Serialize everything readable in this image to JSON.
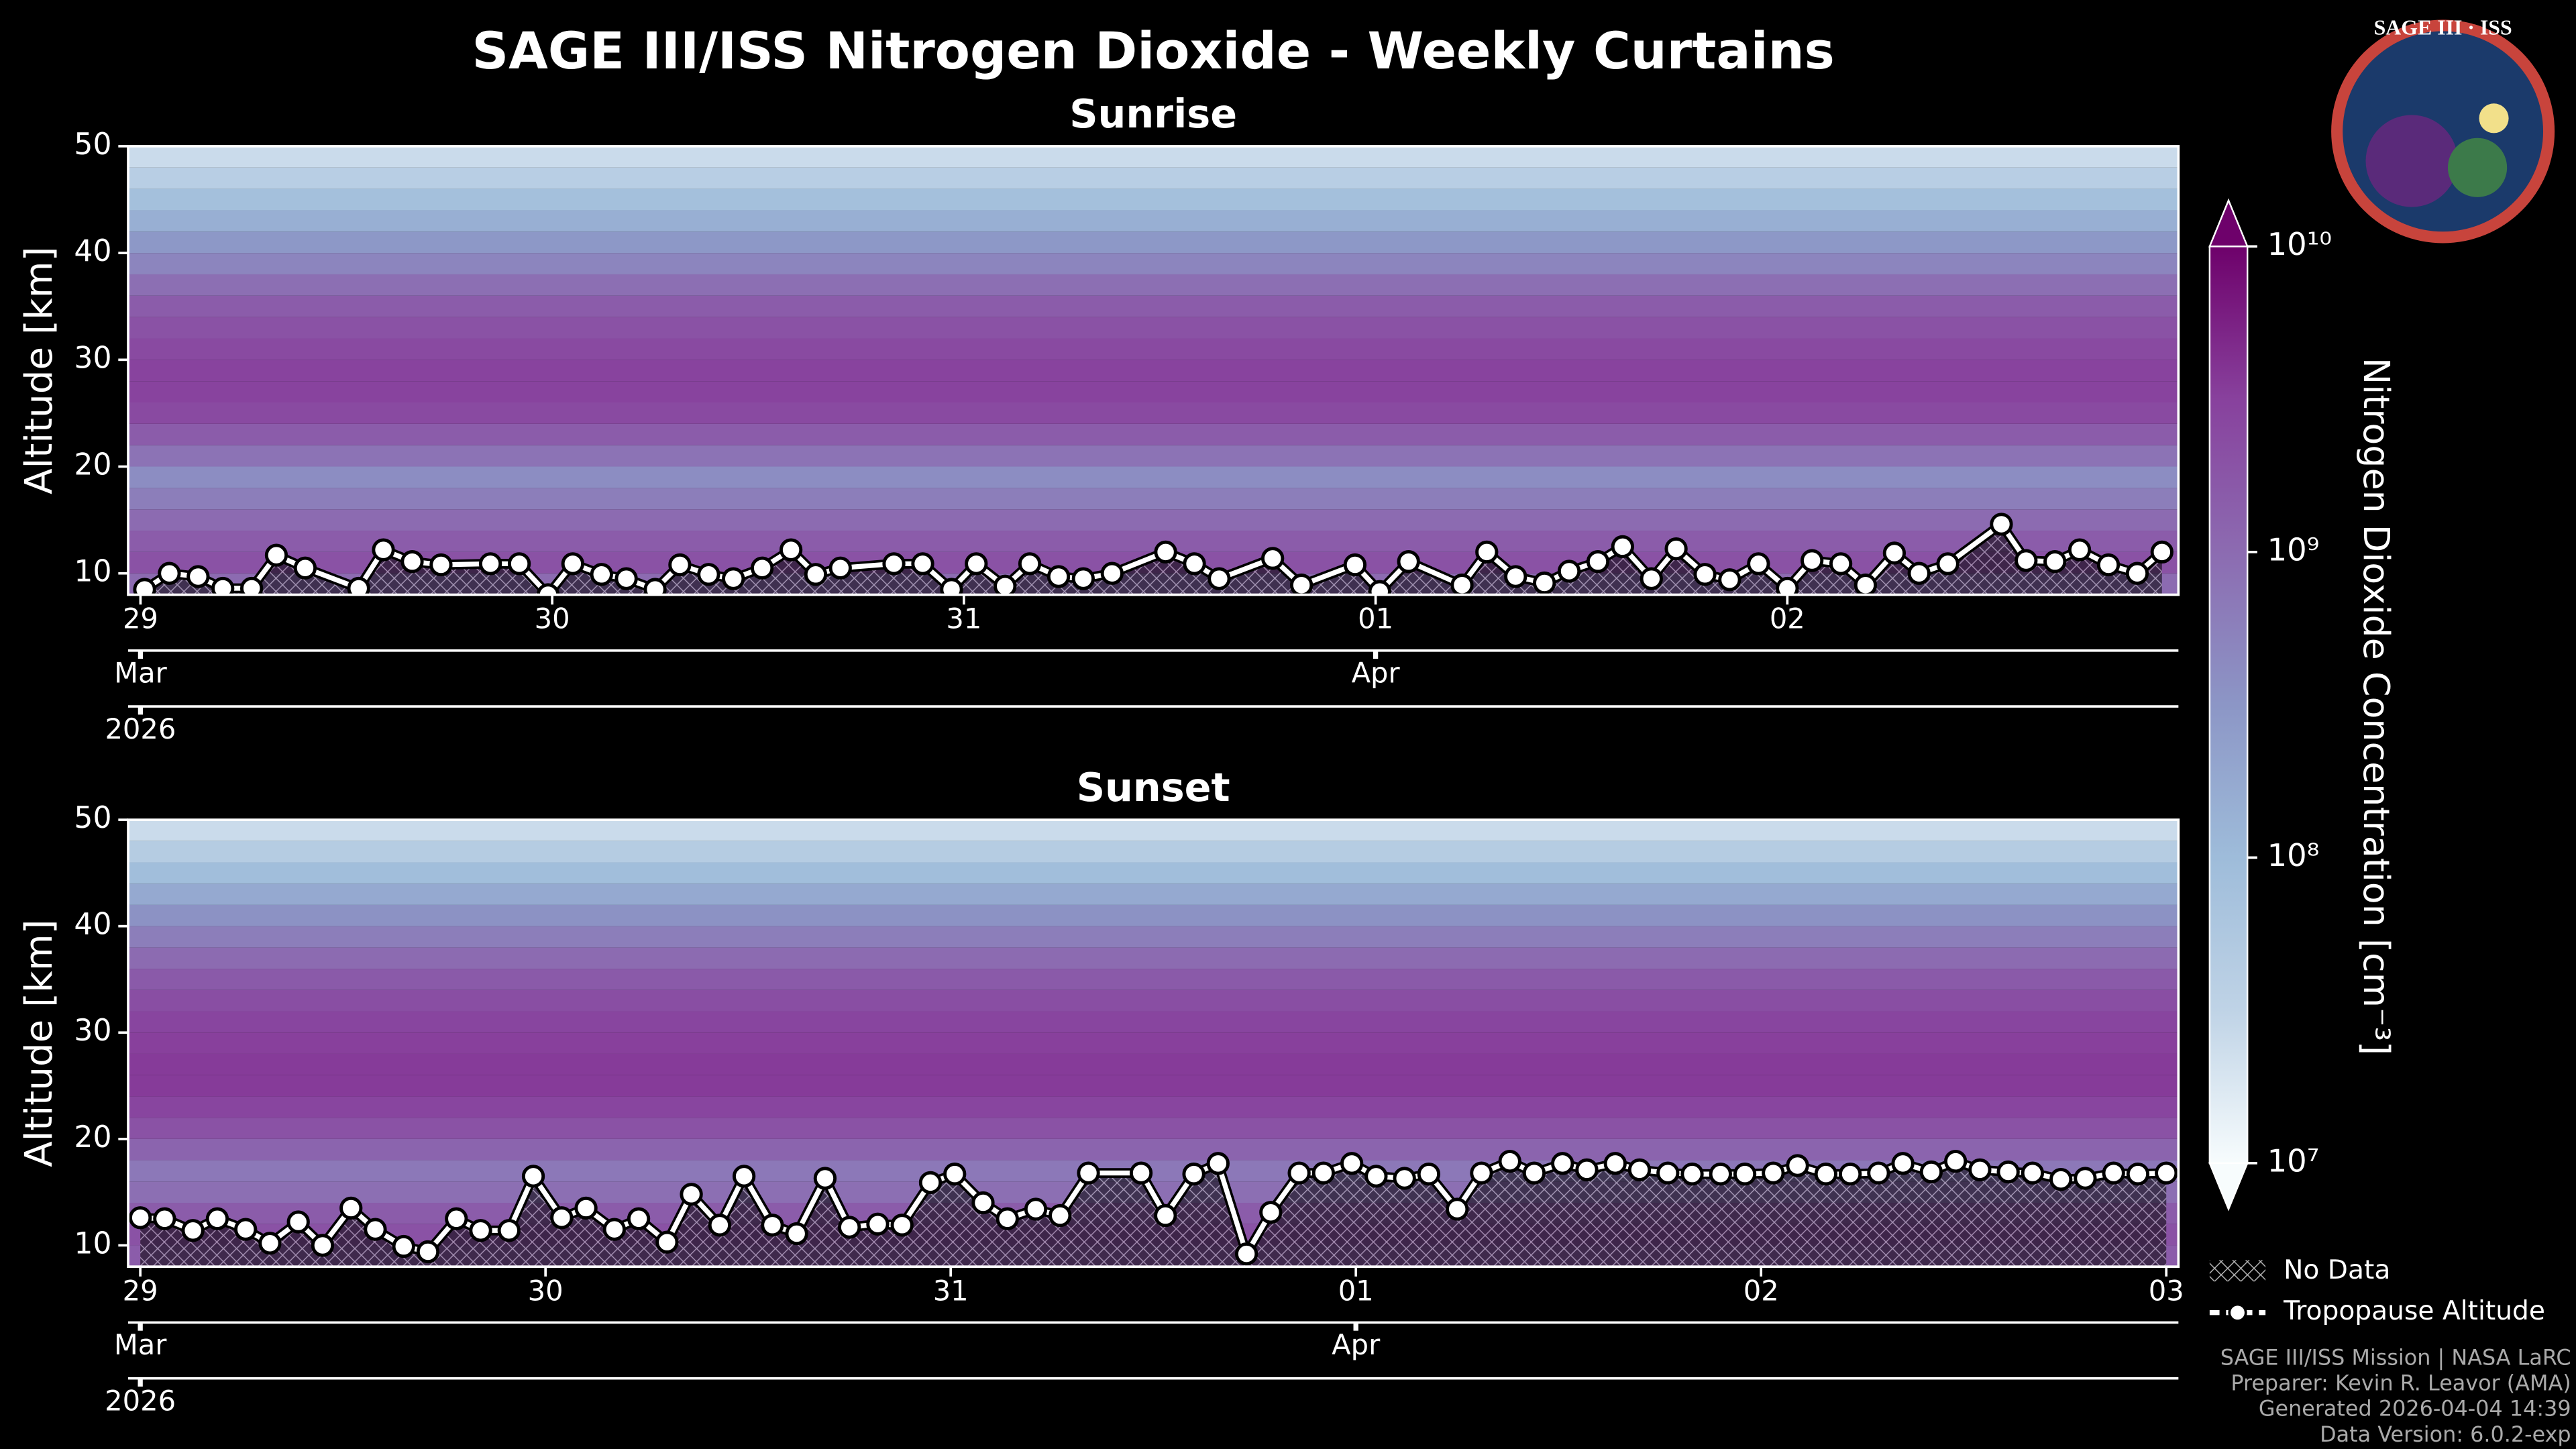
{
  "suptitle": "SAGE III/ISS Nitrogen Dioxide - Weekly Curtains",
  "chart_data": [
    {
      "type": "heatmap",
      "title": "Sunrise",
      "ylabel": "Altitude [km]",
      "xlim": [
        -0.03,
        4.95
      ],
      "ylim": [
        8,
        50
      ],
      "yticks": [
        10,
        20,
        30,
        40,
        50
      ],
      "xticks": [
        {
          "value": 0,
          "label": "29"
        },
        {
          "value": 1,
          "label": "30"
        },
        {
          "value": 2,
          "label": "31"
        },
        {
          "value": 3,
          "label": "01"
        },
        {
          "value": 4,
          "label": "02"
        }
      ],
      "month_ticks": [
        {
          "value": 0,
          "label": "Mar"
        },
        {
          "value": 3,
          "label": "Apr"
        }
      ],
      "year_ticks": [
        {
          "value": 0,
          "label": "2026"
        }
      ],
      "altitudes": [
        9,
        11,
        13,
        15,
        17,
        19,
        21,
        23,
        25,
        27,
        29,
        31,
        33,
        35,
        37,
        39,
        41,
        43,
        45,
        47,
        49
      ],
      "values": [
        1000000000,
        2000000000,
        1500000000,
        1000000000,
        600000000,
        400000000,
        800000000,
        1500000000,
        2500000000,
        3000000000,
        3000000000,
        2500000000,
        2000000000,
        1500000000,
        900000000,
        500000000,
        300000000,
        150000000,
        80000000,
        40000000,
        25000000
      ],
      "series": [
        {
          "color": "#ffffff",
          "x": [
            0.01,
            0.07,
            0.14,
            0.2,
            0.27,
            0.33,
            0.4,
            0.53,
            0.59,
            0.66,
            0.73,
            0.85,
            0.92,
            0.99,
            1.05,
            1.12,
            1.18,
            1.25,
            1.31,
            1.38,
            1.44,
            1.51,
            1.58,
            1.64,
            1.7,
            1.83,
            1.9,
            1.97,
            2.03,
            2.1,
            2.16,
            2.23,
            2.29,
            2.36,
            2.49,
            2.56,
            2.62,
            2.75,
            2.82,
            2.95,
            3.01,
            3.08,
            3.21,
            3.27,
            3.34,
            3.41,
            3.47,
            3.54,
            3.6,
            3.67,
            3.73,
            3.8,
            3.86,
            3.93,
            4.0,
            4.06,
            4.13,
            4.19,
            4.26,
            4.32,
            4.39,
            4.52,
            4.58,
            4.65,
            4.71,
            4.78,
            4.85,
            4.91
          ],
          "values": [
            8.5,
            10.0,
            9.7,
            8.6,
            8.6,
            11.7,
            10.5,
            8.6,
            12.2,
            11.1,
            10.8,
            10.9,
            10.9,
            8.0,
            10.9,
            9.9,
            9.5,
            8.5,
            10.8,
            9.9,
            9.5,
            10.5,
            12.2,
            9.9,
            10.5,
            10.9,
            10.9,
            8.5,
            10.9,
            8.8,
            10.9,
            9.7,
            9.5,
            10.0,
            12.0,
            10.9,
            9.5,
            11.4,
            8.9,
            10.8,
            8.3,
            11.1,
            8.9,
            12.0,
            9.7,
            9.1,
            10.2,
            11.1,
            12.5,
            9.5,
            12.3,
            9.9,
            9.4,
            10.9,
            8.6,
            11.2,
            10.9,
            8.9,
            11.9,
            10.0,
            10.9,
            14.6,
            11.2,
            11.1,
            12.2,
            10.8,
            10.0,
            12.0
          ]
        }
      ]
    },
    {
      "type": "heatmap",
      "title": "Sunset",
      "ylabel": "Altitude [km]",
      "xlim": [
        -0.03,
        5.03
      ],
      "ylim": [
        8,
        50
      ],
      "yticks": [
        10,
        20,
        30,
        40,
        50
      ],
      "xticks": [
        {
          "value": 0,
          "label": "29"
        },
        {
          "value": 1,
          "label": "30"
        },
        {
          "value": 2,
          "label": "31"
        },
        {
          "value": 3,
          "label": "01"
        },
        {
          "value": 4,
          "label": "02"
        },
        {
          "value": 5,
          "label": "03"
        }
      ],
      "month_ticks": [
        {
          "value": 0,
          "label": "Mar"
        },
        {
          "value": 3,
          "label": "Apr"
        }
      ],
      "year_ticks": [
        {
          "value": 0,
          "label": "2026"
        }
      ],
      "altitudes": [
        9,
        11,
        13,
        15,
        17,
        19,
        21,
        23,
        25,
        27,
        29,
        31,
        33,
        35,
        37,
        39,
        41,
        43,
        45,
        47,
        49
      ],
      "values": [
        1500000000,
        2000000000,
        1500000000,
        900000000,
        700000000,
        1200000000,
        2000000000,
        2800000000,
        3500000000,
        3500000000,
        3200000000,
        2800000000,
        2200000000,
        1600000000,
        1000000000,
        600000000,
        350000000,
        180000000,
        90000000,
        45000000,
        25000000
      ],
      "series": [
        {
          "color": "#ffffff",
          "x": [
            0,
            0.06,
            0.13,
            0.19,
            0.26,
            0.32,
            0.39,
            0.45,
            0.52,
            0.58,
            0.65,
            0.71,
            0.78,
            0.84,
            0.91,
            0.97,
            1.04,
            1.1,
            1.17,
            1.23,
            1.3,
            1.36,
            1.43,
            1.49,
            1.56,
            1.62,
            1.69,
            1.75,
            1.82,
            1.88,
            1.95,
            2.01,
            2.08,
            2.14,
            2.21,
            2.27,
            2.34,
            2.47,
            2.53,
            2.6,
            2.66,
            2.73,
            2.79,
            2.86,
            2.92,
            2.99,
            3.05,
            3.12,
            3.18,
            3.25,
            3.31,
            3.38,
            3.44,
            3.51,
            3.57,
            3.64,
            3.7,
            3.77,
            3.83,
            3.9,
            3.96,
            4.03,
            4.09,
            4.16,
            4.22,
            4.29,
            4.35,
            4.42,
            4.48,
            4.54,
            4.61,
            4.67,
            4.74,
            4.8,
            4.87,
            4.93,
            5.0
          ],
          "values": [
            12.6,
            12.5,
            11.4,
            12.5,
            11.5,
            10.2,
            12.2,
            10.0,
            13.5,
            11.5,
            9.9,
            9.4,
            12.5,
            11.4,
            11.4,
            16.5,
            12.6,
            13.5,
            11.5,
            12.5,
            10.3,
            14.8,
            11.9,
            16.5,
            11.9,
            11.1,
            16.3,
            11.7,
            12.0,
            11.9,
            15.9,
            16.7,
            14.0,
            12.5,
            13.4,
            12.8,
            16.8,
            16.8,
            12.8,
            16.7,
            17.7,
            9.2,
            13.1,
            16.8,
            16.8,
            17.7,
            16.5,
            16.3,
            16.7,
            13.4,
            16.8,
            17.9,
            16.8,
            17.7,
            17.1,
            17.7,
            17.1,
            16.8,
            16.7,
            16.7,
            16.7,
            16.8,
            17.5,
            16.7,
            16.7,
            16.8,
            17.7,
            16.9,
            17.9,
            17.1,
            16.9,
            16.8,
            16.2,
            16.3,
            16.8,
            16.7,
            16.8
          ]
        }
      ]
    }
  ],
  "colorbar": {
    "label": "Nitrogen Dioxide Concentration [cm⁻³]",
    "log": true,
    "lim": [
      10000000,
      10000000000
    ],
    "ticks": [
      {
        "value": 10000000,
        "label": "10⁷"
      },
      {
        "value": 100000000,
        "label": "10⁸"
      },
      {
        "value": 1000000000,
        "label": "10⁹"
      },
      {
        "value": 10000000000,
        "label": "10¹⁰"
      }
    ],
    "cmap": [
      "#f7fcfd",
      "#bfd3e6",
      "#9ebcda",
      "#8c96c6",
      "#8c6bb1",
      "#88419d",
      "#6e016b"
    ]
  },
  "legend": {
    "no_data": "No Data",
    "tropopause": "Tropopause Altitude"
  },
  "footer": [
    "SAGE III/ISS Mission | NASA LaRC",
    "Preparer: Kevin R. Leavor (AMA)",
    "Generated 2026-04-04 14:39",
    "Data Version: 6.0.2-exp"
  ],
  "logo": "SAGE III · ISS"
}
